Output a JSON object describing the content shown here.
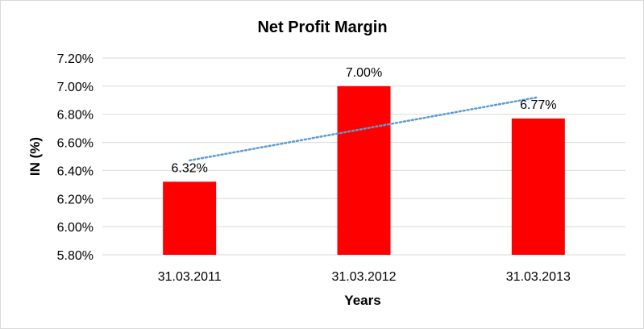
{
  "chart_data": {
    "type": "bar",
    "title": "Net Profit Margin",
    "xlabel": "Years",
    "ylabel": "IN (%)",
    "categories": [
      "31.03.2011",
      "31.03.2012",
      "31.03.2013"
    ],
    "values": [
      6.32,
      7.0,
      6.77
    ],
    "data_labels": [
      "6.32%",
      "7.00%",
      "6.77%"
    ],
    "ylim": [
      5.8,
      7.2
    ],
    "yticks": [
      5.8,
      6.0,
      6.2,
      6.4,
      6.6,
      6.8,
      7.0,
      7.2
    ],
    "ytick_labels": [
      "5.80%",
      "6.00%",
      "6.20%",
      "6.40%",
      "6.60%",
      "6.80%",
      "7.00%",
      "7.20%"
    ],
    "grid": true,
    "legend": "none",
    "trendline": {
      "type": "linear",
      "style": "dotted"
    },
    "colors": {
      "bar": "#ff0000",
      "trendline": "#5b9bd5",
      "grid": "#d9d9d9"
    }
  }
}
